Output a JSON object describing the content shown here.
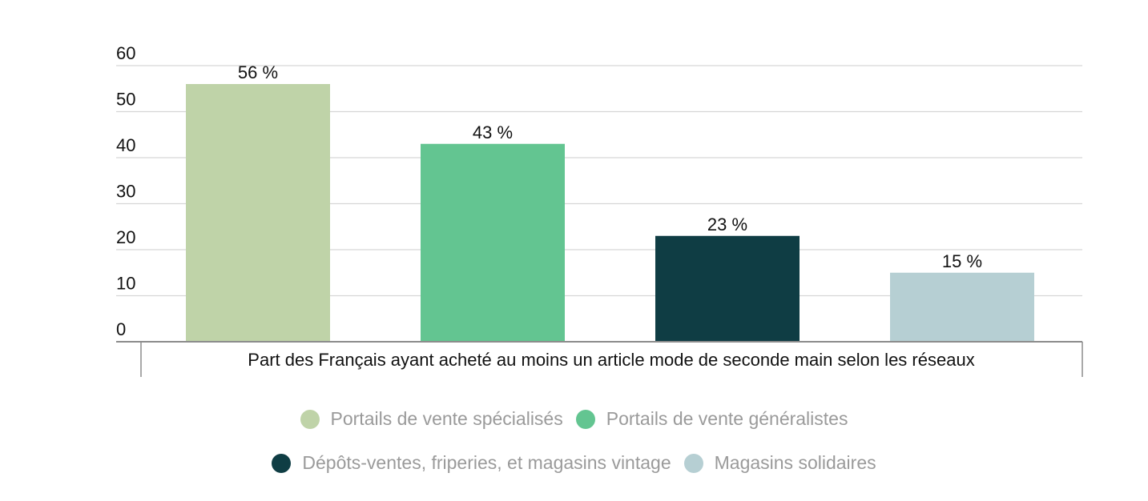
{
  "chart_data": {
    "type": "bar",
    "categories": [
      "Part des Français ayant acheté au moins un article mode de seconde main selon les réseaux"
    ],
    "series": [
      {
        "name": "Portails de vente spécialisés",
        "values": [
          56
        ],
        "color": "#bfd3a8"
      },
      {
        "name": "Portails de vente généralistes",
        "values": [
          43
        ],
        "color": "#63c591"
      },
      {
        "name": "Dépôts-ventes, friperies, et magasins vintage",
        "values": [
          23
        ],
        "color": "#0f3d44"
      },
      {
        "name": "Magasins solidaires",
        "values": [
          15
        ],
        "color": "#b6cfd3"
      }
    ],
    "data_labels": [
      "56 %",
      "43 %",
      "23 %",
      "15 %"
    ],
    "yticks": [
      0,
      10,
      20,
      30,
      40,
      50,
      60
    ],
    "ylim": [
      0,
      60
    ],
    "grid": true,
    "legend_position": "bottom",
    "title": "",
    "xlabel": "",
    "ylabel": ""
  },
  "legend": {
    "rows": [
      [
        0,
        1
      ],
      [
        2,
        3
      ]
    ]
  }
}
